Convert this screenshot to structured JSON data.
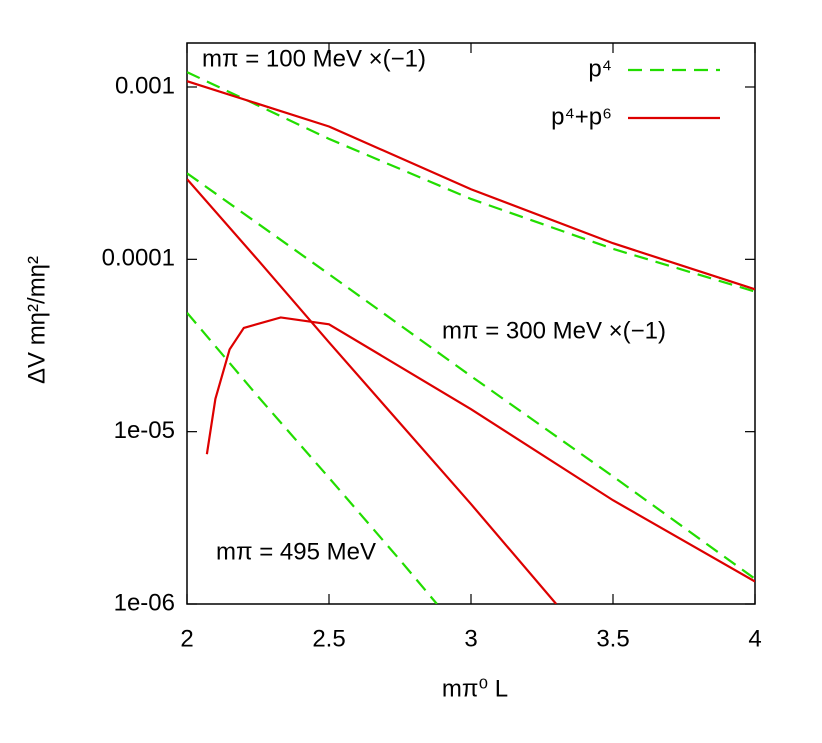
{
  "chart_data": {
    "type": "line",
    "xlabel": "mπ⁰ L",
    "ylabel": "ΔV mη²/mη²",
    "annotations": [
      "mπ = 100 MeV ×(−1)",
      "mπ = 300 MeV ×(−1)",
      "mπ = 495 MeV"
    ],
    "xlim": [
      2,
      4
    ],
    "xticks": [
      2,
      2.5,
      3,
      3.5,
      4
    ],
    "ylim": [
      1e-06,
      0.0018
    ],
    "log_y": true,
    "yticks": [
      {
        "value": 0.001,
        "label": "0.001"
      },
      {
        "value": 0.0001,
        "label": "0.0001"
      },
      {
        "value": 1e-05,
        "label": "1e-05"
      },
      {
        "value": 1e-06,
        "label": "1e-06"
      }
    ],
    "legend": "upper right",
    "series": [
      {
        "name": "p⁴",
        "color": "#22dd00",
        "dash": true,
        "x": [
          2,
          2.5,
          3,
          3.5,
          4
        ],
        "values": [
          0.00122,
          0.0005,
          0.000224,
          0.000115,
          6.5e-05
        ]
      },
      {
        "name": "p⁴+p⁶",
        "color": "#dd0000",
        "dash": false,
        "x": [
          2,
          2.5,
          3,
          3.5,
          4
        ],
        "values": [
          0.00108,
          0.00059,
          0.000255,
          0.000124,
          6.7e-05
        ]
      },
      {
        "name": "p⁴",
        "color": "#22dd00",
        "dash": true,
        "x": [
          2,
          2.5,
          3,
          3.5,
          4
        ],
        "values": [
          0.000316,
          8.2e-05,
          2.1e-05,
          5.5e-06,
          1.4e-06
        ]
      },
      {
        "name": "p⁴+p⁶",
        "color": "#dd0000",
        "dash": false,
        "x": [
          2.07,
          2.1,
          2.15,
          2.2,
          2.33,
          2.5,
          3,
          3.5,
          4
        ],
        "values": [
          7.4e-06,
          1.55e-05,
          3e-05,
          4e-05,
          4.6e-05,
          4.2e-05,
          1.35e-05,
          4e-06,
          1.35e-06
        ]
      },
      {
        "name": "p⁴",
        "color": "#22dd00",
        "dash": true,
        "x": [
          2,
          2.25,
          2.5,
          2.75,
          2.88
        ],
        "values": [
          4.9e-05,
          1.6e-05,
          5.4e-06,
          1.8e-06,
          1e-06
        ]
      },
      {
        "name": "p⁴+p⁶",
        "color": "#dd0000",
        "dash": false,
        "x": [
          2,
          2.25,
          2.5,
          3,
          3.3
        ],
        "values": [
          0.000292,
          9.9e-05,
          3.3e-05,
          3.8e-06,
          1e-06
        ]
      }
    ]
  }
}
